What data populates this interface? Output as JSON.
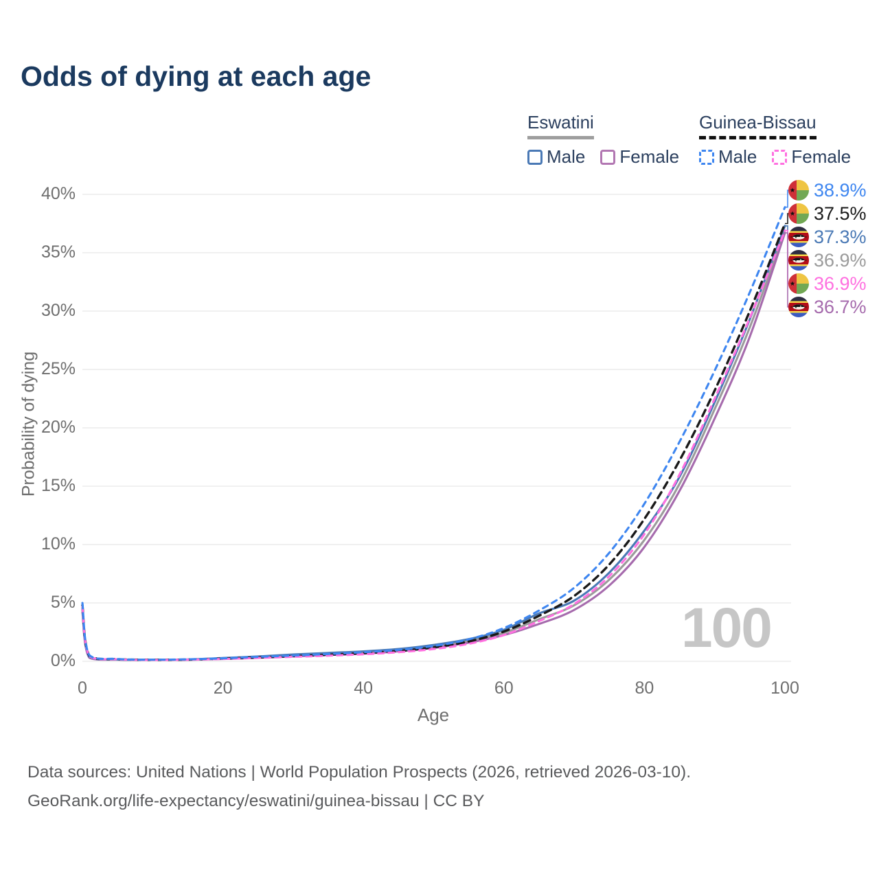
{
  "title": "Odds of dying at each age",
  "watermark": "100",
  "legend": {
    "eswatini": {
      "label": "Eswatini",
      "male": "Male",
      "female": "Female"
    },
    "guinea_bissau": {
      "label": "Guinea-Bissau",
      "male": "Male",
      "female": "Female"
    }
  },
  "colors": {
    "eswatini_male": "#4a79b5",
    "eswatini_female": "#a66bad",
    "eswatini_both": "#9b9b9b",
    "guinea_bissau_male": "#3e86f0",
    "guinea_bissau_female": "#ff70e0",
    "guinea_bissau_both": "#1a1a1a",
    "title_text": "#1b3a5f",
    "grid": "#ececec",
    "tick_text": "#6e6e6e"
  },
  "chart_data": {
    "type": "line",
    "title": "Odds of dying at each age",
    "xlabel": "Age",
    "ylabel": "Probability of dying",
    "xlim": [
      0,
      100
    ],
    "ylim_pct": [
      0,
      40
    ],
    "x_ticks": [
      0,
      20,
      40,
      60,
      80,
      100
    ],
    "y_ticks_pct": [
      0,
      5,
      10,
      15,
      20,
      25,
      30,
      35,
      40
    ],
    "grid": "horizontal",
    "legend_position": "top-right",
    "ages": [
      0,
      1,
      5,
      10,
      15,
      20,
      25,
      30,
      35,
      40,
      45,
      50,
      55,
      60,
      65,
      70,
      75,
      80,
      85,
      90,
      95,
      100
    ],
    "series": [
      {
        "id": "sz_both",
        "name": "Eswatini — Both sexes",
        "color": "#9b9b9b",
        "dash": "solid",
        "end_label": "36.9%",
        "values": [
          4.4,
          0.34,
          0.15,
          0.12,
          0.15,
          0.24,
          0.36,
          0.5,
          0.63,
          0.76,
          0.95,
          1.28,
          1.75,
          2.45,
          3.6,
          4.8,
          7.0,
          10.4,
          15.2,
          21.6,
          28.6,
          36.9
        ]
      },
      {
        "id": "sz_female",
        "name": "Eswatini — Female",
        "color": "#a66bad",
        "dash": "solid",
        "end_label": "36.7%",
        "values": [
          4.2,
          0.3,
          0.14,
          0.11,
          0.13,
          0.2,
          0.3,
          0.42,
          0.54,
          0.66,
          0.85,
          1.15,
          1.6,
          2.25,
          3.2,
          4.4,
          6.5,
          9.8,
          14.6,
          20.8,
          27.8,
          36.7
        ]
      },
      {
        "id": "sz_male",
        "name": "Eswatini — Male",
        "color": "#4a79b5",
        "dash": "solid",
        "end_label": "37.3%",
        "values": [
          4.6,
          0.38,
          0.16,
          0.13,
          0.16,
          0.28,
          0.42,
          0.58,
          0.72,
          0.85,
          1.05,
          1.4,
          1.9,
          2.7,
          4.1,
          5.2,
          7.6,
          11.2,
          15.8,
          22.2,
          29.3,
          37.3
        ]
      },
      {
        "id": "gb_both",
        "name": "Guinea-Bissau — Both sexes",
        "color": "#1a1a1a",
        "dash": "dashed",
        "end_label": "37.5%",
        "values": [
          4.8,
          0.48,
          0.18,
          0.13,
          0.15,
          0.23,
          0.33,
          0.44,
          0.56,
          0.7,
          0.88,
          1.2,
          1.7,
          2.55,
          3.9,
          5.6,
          8.3,
          12.2,
          17.2,
          23.2,
          30.0,
          37.5
        ]
      },
      {
        "id": "gb_female",
        "name": "Guinea-Bissau — Female",
        "color": "#ff70e0",
        "dash": "dashed",
        "end_label": "36.9%",
        "values": [
          4.7,
          0.44,
          0.17,
          0.12,
          0.14,
          0.2,
          0.29,
          0.38,
          0.48,
          0.6,
          0.78,
          1.05,
          1.5,
          2.25,
          3.45,
          4.9,
          7.3,
          10.9,
          16.0,
          22.5,
          29.4,
          36.9
        ]
      },
      {
        "id": "gb_male",
        "name": "Guinea-Bissau — Male",
        "color": "#3e86f0",
        "dash": "dashed",
        "end_label": "38.9%",
        "values": [
          5.0,
          0.52,
          0.2,
          0.14,
          0.17,
          0.26,
          0.38,
          0.5,
          0.63,
          0.78,
          0.98,
          1.32,
          1.88,
          2.85,
          4.35,
          6.3,
          9.3,
          13.5,
          18.8,
          24.9,
          31.6,
          38.9
        ]
      }
    ]
  },
  "end_labels": [
    {
      "value": "38.9%",
      "flag": "gw",
      "color": "#3e86f0",
      "series": "gb_male"
    },
    {
      "value": "37.5%",
      "flag": "gw",
      "color": "#1a1a1a",
      "series": "gb_both"
    },
    {
      "value": "37.3%",
      "flag": "sz",
      "color": "#4a79b5",
      "series": "sz_male"
    },
    {
      "value": "36.9%",
      "flag": "sz",
      "color": "#9b9b9b",
      "series": "sz_both"
    },
    {
      "value": "36.9%",
      "flag": "gw",
      "color": "#ff70e0",
      "series": "gb_female"
    },
    {
      "value": "36.7%",
      "flag": "sz",
      "color": "#a66bad",
      "series": "sz_female"
    }
  ],
  "footer": {
    "line1": "Data sources: United Nations | World Population Prospects (2026, retrieved 2026-03-10).",
    "line2": "GeoRank.org/life-expectancy/eswatini/guinea-bissau | CC BY"
  }
}
